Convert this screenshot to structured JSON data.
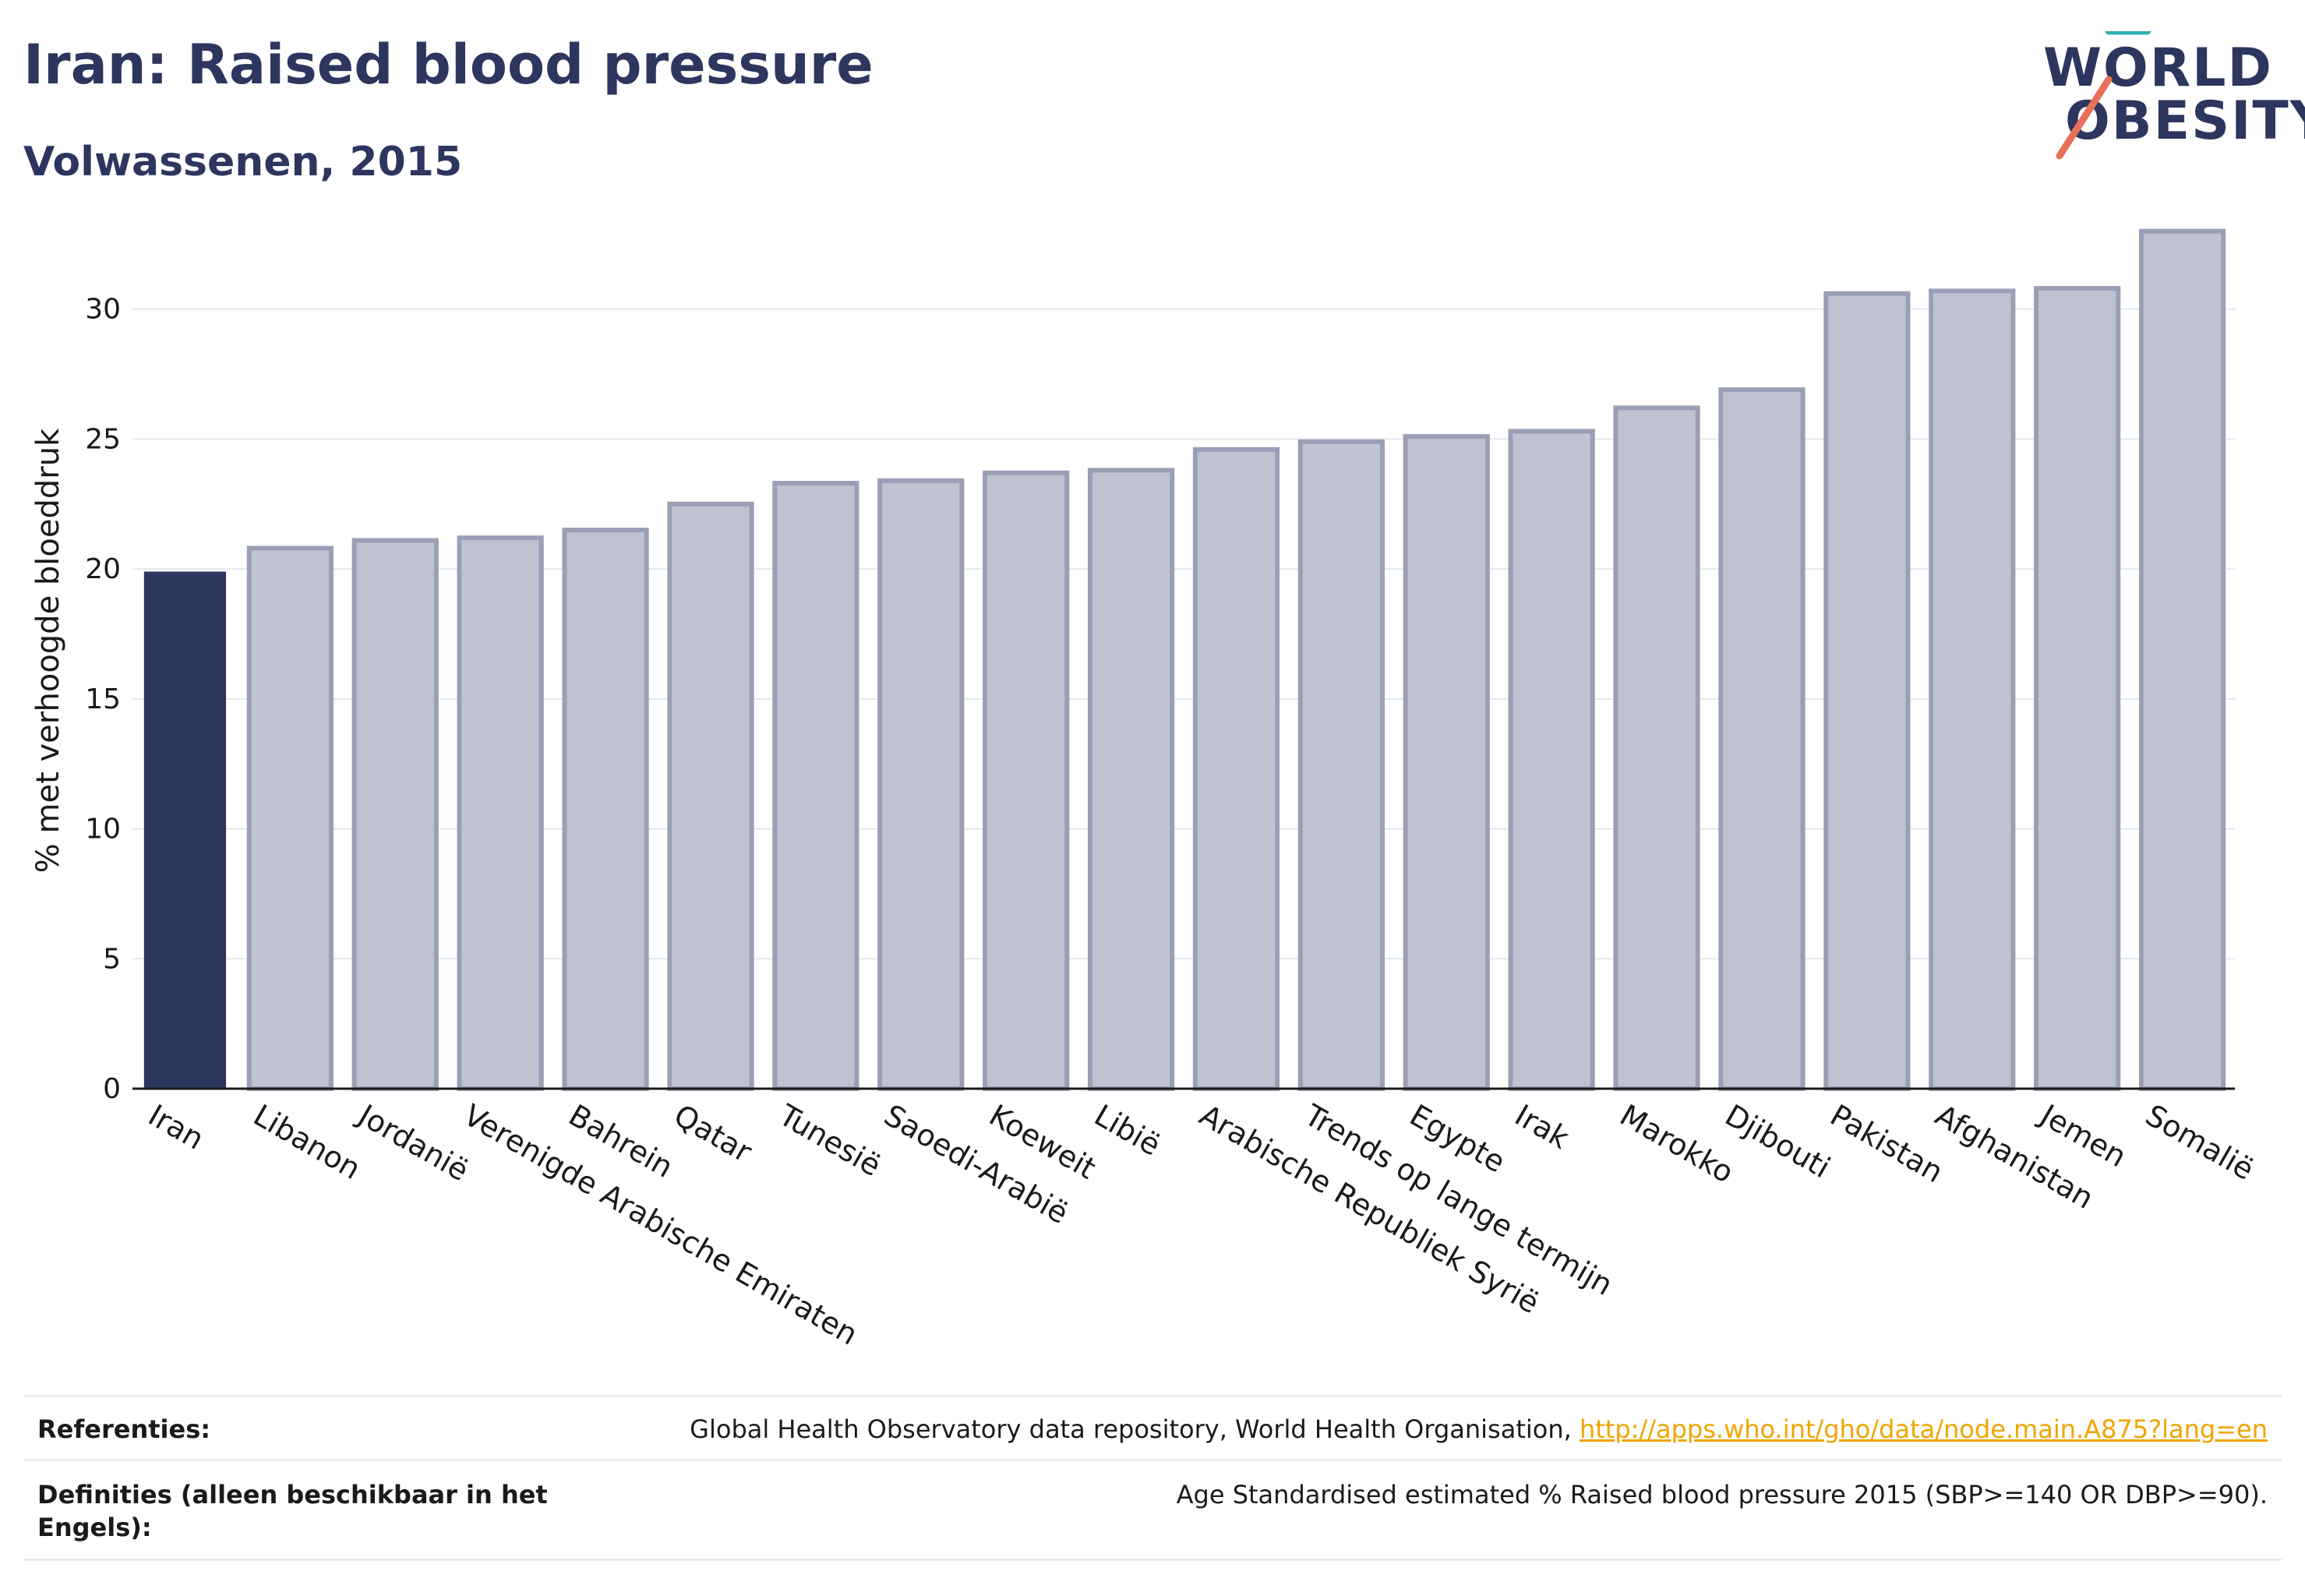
{
  "title": "Iran: Raised blood pressure",
  "subtitle": "Volwassenen, 2015",
  "logo": {
    "line1": "WORLD",
    "line2": "OBESITY"
  },
  "colors": {
    "highlight": "#2c365e",
    "bar_fill": "#bfc3d0",
    "bar_stroke": "#9a9fb5",
    "link": "#f0a500"
  },
  "chart_data": {
    "type": "bar",
    "ylabel": "% met verhoogde bloeddruk",
    "ylim": [
      0,
      33.5
    ],
    "yticks": [
      0,
      5,
      10,
      15,
      20,
      25,
      30
    ],
    "grid": true,
    "highlight": "Iran",
    "categories": [
      "Iran",
      "Libanon",
      "Jordanië",
      "Verenigde Arabische Emiraten",
      "Bahrein",
      "Qatar",
      "Tunesië",
      "Saoedi-Arabië",
      "Koeweit",
      "Libië",
      "Arabische Republiek Syrië",
      "Trends op lange termijn",
      "Egypte",
      "Irak",
      "Marokko",
      "Djibouti",
      "Pakistan",
      "Afghanistan",
      "Jemen",
      "Somalië"
    ],
    "values": [
      19.9,
      20.8,
      21.1,
      21.2,
      21.5,
      22.5,
      23.3,
      23.4,
      23.7,
      23.8,
      24.6,
      24.9,
      25.1,
      25.3,
      26.2,
      26.9,
      30.6,
      30.7,
      30.8,
      33.0
    ]
  },
  "footer": {
    "ref_label": "Referenties:",
    "ref_text": "Global Health Observatory data repository, World Health Organisation, ",
    "ref_link": "http://apps.who.int/gho/data/node.main.A875?lang=en",
    "def_label": "Definities (alleen beschikbaar in het Engels):",
    "def_text": "Age Standardised estimated % Raised blood pressure 2015 (SBP>=140 OR DBP>=90)."
  }
}
